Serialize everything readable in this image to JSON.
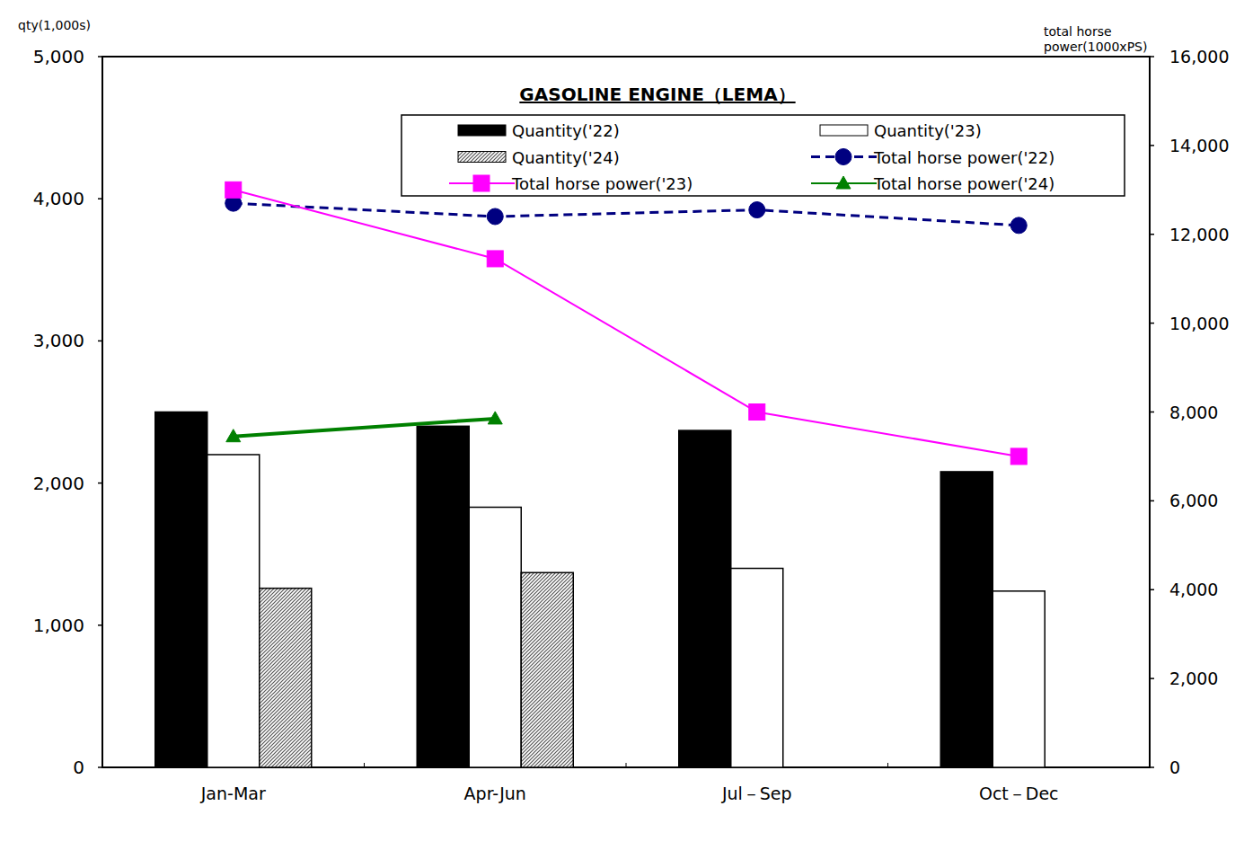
{
  "chart_data": {
    "type": "bar",
    "title": "GASOLINE ENGINE（LEMA）",
    "ylabel": "qty(1,000s)",
    "y2label": "total horse power(1000xPS)",
    "categories": [
      "Jan-Mar",
      "Apr-Jun",
      "Jul－Sep",
      "Oct－Dec"
    ],
    "ylim": [
      0,
      5000
    ],
    "yticks": [
      0,
      {
        "value": 1000,
        "label": "1,000"
      },
      {
        "value": 2000,
        "label": "2,000"
      },
      {
        "value": 3000,
        "label": "3,000"
      },
      {
        "value": 4000,
        "label": "4,000"
      },
      {
        "value": 5000,
        "label": "5,000"
      }
    ],
    "y2lim": [
      0,
      16000
    ],
    "y2ticks": [
      0,
      {
        "value": 2000,
        "label": "2,000"
      },
      {
        "value": 4000,
        "label": "4,000"
      },
      {
        "value": 6000,
        "label": "6,000"
      },
      {
        "value": 8000,
        "label": "8,000"
      },
      {
        "value": 10000,
        "label": "10,000"
      },
      {
        "value": 12000,
        "label": "12,000"
      },
      {
        "value": 14000,
        "label": "14,000"
      },
      {
        "value": 16000,
        "label": "16,000"
      }
    ],
    "grid": false,
    "legend": "top-right",
    "series": [
      {
        "name": "Quantity('22)",
        "type": "bar",
        "color": "#000000",
        "values": [
          2500,
          2400,
          2370,
          2080
        ]
      },
      {
        "name": "Quantity('23)",
        "type": "bar",
        "color": "#ffffff",
        "values": [
          2200,
          1830,
          1400,
          1240
        ]
      },
      {
        "name": "Quantity('24)",
        "type": "bar",
        "color": "#555555",
        "marker": "hatch",
        "values": [
          1260,
          1370,
          null,
          null
        ]
      },
      {
        "name": "Total horse power('22)",
        "type": "line",
        "axis": "y2",
        "color": "#000080",
        "marker": "circle",
        "line_style": "dashed",
        "values": [
          12700,
          12400,
          12550,
          12200
        ]
      },
      {
        "name": "Total horse power('23)",
        "type": "line",
        "axis": "y2",
        "color": "#ff00ff",
        "marker": "square",
        "line_style": "solid",
        "values": [
          13000,
          11450,
          8000,
          7000
        ]
      },
      {
        "name": "Total horse power('24)",
        "type": "line",
        "axis": "y2",
        "color": "#008000",
        "marker": "triangle",
        "line_style": "solid",
        "values": [
          7450,
          7850,
          null,
          null
        ]
      }
    ]
  }
}
